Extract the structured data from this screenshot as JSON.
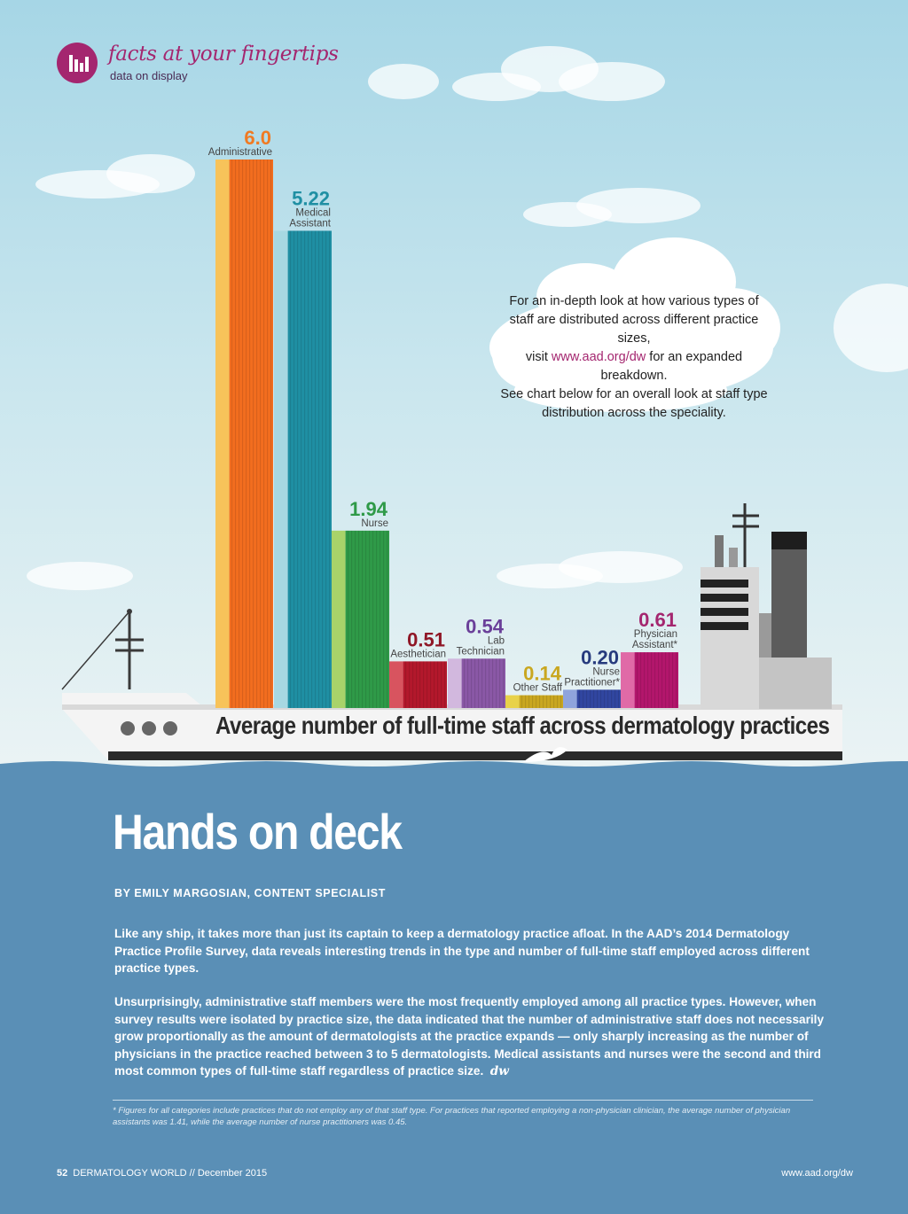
{
  "header": {
    "brand_title": "facts at your fingertips",
    "brand_subtitle": "data on display"
  },
  "note": {
    "line1": "For an in-depth look at how various types of",
    "line2": "staff are distributed across different practice sizes,",
    "line3_pre": "visit ",
    "link": "www.aad.org/dw",
    "line3_post": " for an expanded breakdown.",
    "line4": "See chart below for an overall look at staff type",
    "line5": "distribution across the speciality."
  },
  "chart_data": {
    "type": "bar",
    "title": "Average number of full-time staff across dermatology practices",
    "categories": [
      "Administrative",
      "Medical Assistant",
      "Nurse",
      "Aesthetician",
      "Lab Technician",
      "Other Staff",
      "Nurse Practitioner*",
      "Physician Assistant*"
    ],
    "values": [
      6.0,
      5.22,
      1.94,
      0.51,
      0.54,
      0.14,
      0.2,
      0.61
    ],
    "value_labels": [
      "6.0",
      "5.22",
      "1.94",
      "0.51",
      "0.54",
      "0.14",
      "0.20",
      "0.61"
    ],
    "label_lines": [
      [
        "Administrative"
      ],
      [
        "Medical",
        "Assistant"
      ],
      [
        "Nurse"
      ],
      [
        "Aesthetician"
      ],
      [
        "Lab",
        "Technician"
      ],
      [
        "Other Staff"
      ],
      [
        "Nurse",
        "Practitioner*"
      ],
      [
        "Physician",
        "Assistant*"
      ]
    ],
    "colors": [
      "#f26d1f",
      "#1f8fa3",
      "#2f9a48",
      "#b3182c",
      "#8a58a6",
      "#c9a720",
      "#3146a0",
      "#b3166c"
    ],
    "light_colors": [
      "#f7c35a",
      "#a7d8e2",
      "#a9d36a",
      "#d8545f",
      "#d2b8de",
      "#e8d24a",
      "#8fa4dc",
      "#e06aa7"
    ],
    "value_colors": [
      "#f07a22",
      "#1f8fa3",
      "#2f9a48",
      "#8f1726",
      "#6a3f99",
      "#c9a720",
      "#263a7d",
      "#a4266f"
    ],
    "ylim": [
      0,
      6.0
    ],
    "grid": false,
    "legend": "none"
  },
  "article": {
    "headline": "Hands on deck",
    "byline": "BY EMILY MARGOSIAN, CONTENT SPECIALIST",
    "para1": "Like any ship, it takes more than just its captain to keep a dermatology practice afloat. In the AAD’s 2014 Dermatology Practice Profile Survey, data reveals interesting trends in the type and number of full-time staff employed across different practice types.",
    "para2": "Unsurprisingly, administrative staff members were the most frequently employed among all practice types. However, when survey results were isolated by practice size, the data indicated that the number of administrative staff does not necessarily grow proportionally as the amount of dermatologists at the practice expands — only sharply increasing as the number of physicians in the practice reached between 3 to 5 dermatologists. Medical assistants and nurses were the second and third most common types of full-time staff regardless of practice size.",
    "end_mark": "dw",
    "footnote": "* Figures for all categories include practices that do not employ any of that staff type. For practices that reported employing a non-physician clinician, the average number of physician assistants was 1.41, while the average number of nurse practitioners was 0.45."
  },
  "footer": {
    "page_number": "52",
    "publication": "DERMATOLOGY WORLD // December 2015",
    "site": "www.aad.org/dw"
  }
}
